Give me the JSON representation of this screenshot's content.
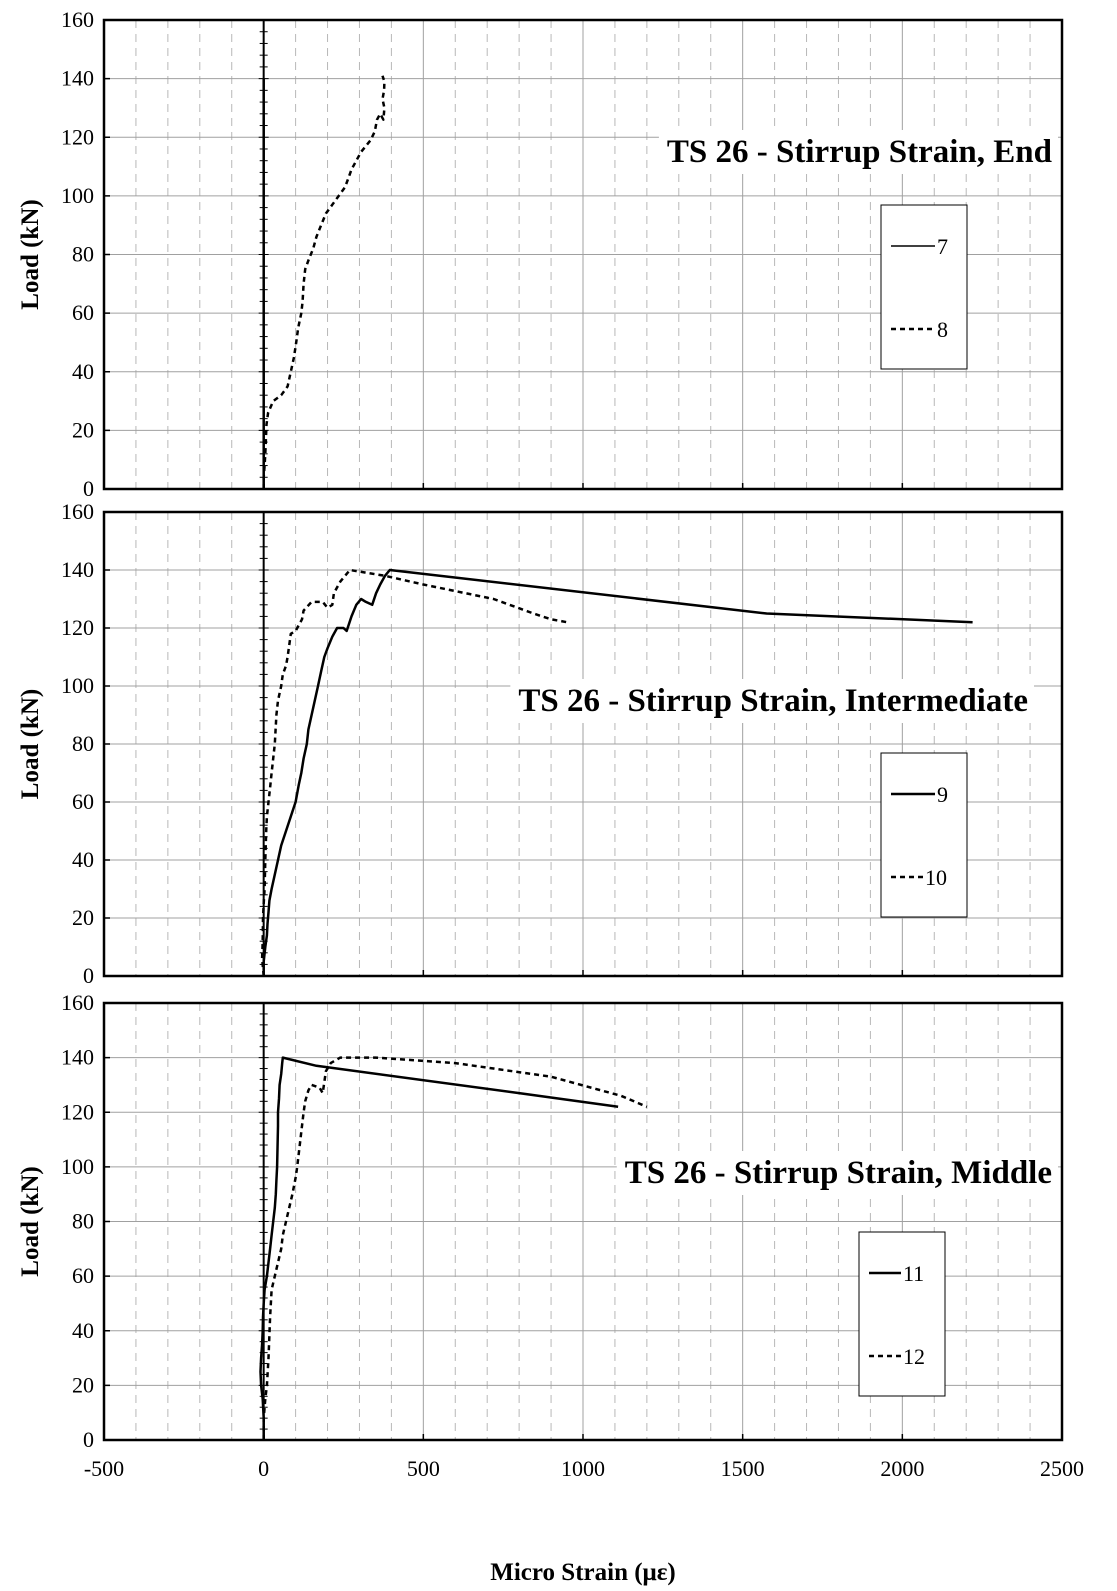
{
  "figure": {
    "xlabel": "Micro Strain (με)",
    "x_ticks": [
      "-500",
      "0",
      "500",
      "1000",
      "1500",
      "2000",
      "2500"
    ],
    "y_ticks": [
      "0",
      "20",
      "40",
      "60",
      "80",
      "100",
      "120",
      "140",
      "160"
    ]
  },
  "chart_data": [
    {
      "type": "line",
      "title": "TS 26 - Stirrup Strain, End",
      "xlabel": "",
      "ylabel": "Load (kN)",
      "xlim": [
        -500,
        2500
      ],
      "ylim": [
        0,
        160
      ],
      "grid": true,
      "legend_position": "right",
      "series": [
        {
          "name": "7",
          "style": "solid",
          "color": "#000000",
          "points": [
            [
              0,
              0
            ],
            [
              0,
              140
            ]
          ]
        },
        {
          "name": "8",
          "style": "dashed",
          "color": "#000000",
          "points": [
            [
              0,
              0
            ],
            [
              0,
              4
            ],
            [
              3,
              8
            ],
            [
              5,
              12
            ],
            [
              7,
              17
            ],
            [
              9,
              22
            ],
            [
              14,
              26
            ],
            [
              30,
              30
            ],
            [
              55,
              32
            ],
            [
              75,
              35
            ],
            [
              85,
              40
            ],
            [
              95,
              45
            ],
            [
              102,
              50
            ],
            [
              108,
              55
            ],
            [
              118,
              60
            ],
            [
              122,
              64
            ],
            [
              125,
              70
            ],
            [
              130,
              75
            ],
            [
              140,
              78
            ],
            [
              155,
              82
            ],
            [
              165,
              86
            ],
            [
              180,
              90
            ],
            [
              195,
              94
            ],
            [
              215,
              97
            ],
            [
              235,
              100
            ],
            [
              255,
              103
            ],
            [
              265,
              106
            ],
            [
              275,
              109
            ],
            [
              290,
              112
            ],
            [
              305,
              115
            ],
            [
              320,
              117
            ],
            [
              335,
              119
            ],
            [
              348,
              122
            ],
            [
              355,
              126
            ],
            [
              365,
              128
            ],
            [
              375,
              126
            ],
            [
              378,
              130
            ],
            [
              372,
              133
            ],
            [
              377,
              136
            ],
            [
              378,
              139
            ],
            [
              372,
              141
            ]
          ]
        }
      ]
    },
    {
      "type": "line",
      "title": "TS 26 - Stirrup Strain, Intermediate",
      "xlabel": "",
      "ylabel": "Load (kN)",
      "xlim": [
        -500,
        2500
      ],
      "ylim": [
        0,
        160
      ],
      "grid": true,
      "legend_position": "right",
      "series": [
        {
          "name": "9",
          "style": "solid",
          "color": "#000000",
          "points": [
            [
              0,
              0
            ],
            [
              0,
              5
            ],
            [
              5,
              10
            ],
            [
              10,
              14
            ],
            [
              12,
              18
            ],
            [
              15,
              22
            ],
            [
              18,
              26
            ],
            [
              25,
              30
            ],
            [
              35,
              35
            ],
            [
              45,
              40
            ],
            [
              55,
              45
            ],
            [
              70,
              50
            ],
            [
              85,
              55
            ],
            [
              100,
              60
            ],
            [
              110,
              66
            ],
            [
              118,
              70
            ],
            [
              125,
              75
            ],
            [
              135,
              80
            ],
            [
              140,
              85
            ],
            [
              150,
              90
            ],
            [
              160,
              95
            ],
            [
              170,
              100
            ],
            [
              180,
              105
            ],
            [
              190,
              110
            ],
            [
              200,
              113
            ],
            [
              215,
              117
            ],
            [
              230,
              120
            ],
            [
              250,
              120
            ],
            [
              260,
              119
            ],
            [
              275,
              124
            ],
            [
              290,
              128
            ],
            [
              305,
              130
            ],
            [
              320,
              129
            ],
            [
              340,
              128
            ],
            [
              352,
              132
            ],
            [
              365,
              135
            ],
            [
              380,
              138
            ],
            [
              395,
              140
            ],
            [
              1575,
              125
            ],
            [
              2220,
              122
            ]
          ]
        },
        {
          "name": "10",
          "style": "dashed",
          "color": "#000000",
          "points": [
            [
              0,
              0
            ],
            [
              -5,
              6
            ],
            [
              -3,
              12
            ],
            [
              -2,
              20
            ],
            [
              0,
              25
            ],
            [
              3,
              30
            ],
            [
              5,
              40
            ],
            [
              8,
              50
            ],
            [
              10,
              55
            ],
            [
              15,
              60
            ],
            [
              20,
              65
            ],
            [
              25,
              70
            ],
            [
              30,
              75
            ],
            [
              35,
              80
            ],
            [
              40,
              90
            ],
            [
              45,
              95
            ],
            [
              55,
              100
            ],
            [
              60,
              104
            ],
            [
              70,
              107
            ],
            [
              75,
              110
            ],
            [
              80,
              114
            ],
            [
              85,
              118
            ],
            [
              100,
              119
            ],
            [
              110,
              121
            ],
            [
              120,
              123
            ],
            [
              125,
              126
            ],
            [
              150,
              129
            ],
            [
              185,
              129
            ],
            [
              200,
              127
            ],
            [
              215,
              128
            ],
            [
              220,
              132
            ],
            [
              240,
              136
            ],
            [
              270,
              140
            ],
            [
              380,
              138
            ],
            [
              500,
              135
            ],
            [
              720,
              130
            ],
            [
              845,
              125
            ],
            [
              900,
              123
            ],
            [
              950,
              122
            ]
          ]
        }
      ]
    },
    {
      "type": "line",
      "title": "TS 26 - Stirrup Strain, Middle",
      "xlabel": "Micro Strain (με)",
      "ylabel": "Load (kN)",
      "xlim": [
        -500,
        2500
      ],
      "ylim": [
        0,
        160
      ],
      "grid": true,
      "legend_position": "right",
      "series": [
        {
          "name": "11",
          "style": "solid",
          "color": "#000000",
          "points": [
            [
              0,
              0
            ],
            [
              0,
              8
            ],
            [
              -3,
              15
            ],
            [
              -8,
              20
            ],
            [
              -10,
              25
            ],
            [
              -8,
              30
            ],
            [
              -5,
              35
            ],
            [
              -3,
              40
            ],
            [
              -2,
              45
            ],
            [
              0,
              50
            ],
            [
              3,
              55
            ],
            [
              10,
              60
            ],
            [
              15,
              65
            ],
            [
              20,
              70
            ],
            [
              25,
              75
            ],
            [
              30,
              80
            ],
            [
              35,
              85
            ],
            [
              38,
              90
            ],
            [
              40,
              95
            ],
            [
              42,
              100
            ],
            [
              43,
              105
            ],
            [
              44,
              110
            ],
            [
              45,
              115
            ],
            [
              45,
              120
            ],
            [
              48,
              125
            ],
            [
              50,
              130
            ],
            [
              55,
              134
            ],
            [
              58,
              138
            ],
            [
              60,
              140
            ],
            [
              165,
              137
            ],
            [
              800,
              127
            ],
            [
              1110,
              122
            ]
          ]
        },
        {
          "name": "12",
          "style": "dashed",
          "color": "#000000",
          "points": [
            [
              0,
              0
            ],
            [
              0,
              8
            ],
            [
              5,
              15
            ],
            [
              10,
              20
            ],
            [
              15,
              30
            ],
            [
              20,
              45
            ],
            [
              25,
              55
            ],
            [
              35,
              60
            ],
            [
              45,
              65
            ],
            [
              55,
              70
            ],
            [
              60,
              75
            ],
            [
              70,
              80
            ],
            [
              80,
              85
            ],
            [
              90,
              90
            ],
            [
              100,
              96
            ],
            [
              105,
              100
            ],
            [
              110,
              105
            ],
            [
              115,
              110
            ],
            [
              120,
              115
            ],
            [
              125,
              120
            ],
            [
              130,
              124
            ],
            [
              140,
              128
            ],
            [
              150,
              130
            ],
            [
              175,
              129
            ],
            [
              185,
              127
            ],
            [
              195,
              135
            ],
            [
              210,
              138
            ],
            [
              240,
              140
            ],
            [
              350,
              140
            ],
            [
              600,
              138
            ],
            [
              900,
              133
            ],
            [
              1120,
              126
            ],
            [
              1200,
              122
            ]
          ]
        }
      ]
    }
  ]
}
